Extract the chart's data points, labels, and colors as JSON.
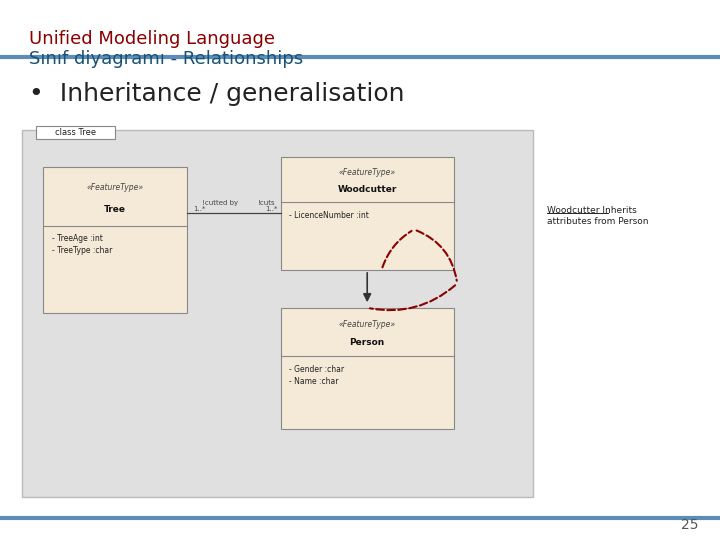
{
  "title_line1": "Unified Modeling Language",
  "title_line2": "Sınıf diyagramı - Relationships",
  "title_color": "#8B0000",
  "subtitle_color": "#1a5276",
  "bullet_text": "Inheritance / generalisation",
  "page_number": "25",
  "bg_color": "#ffffff",
  "diagram_bg": "#e0e0e0",
  "box_fill": "#f5ead8",
  "box_edge": "#888888",
  "header_line_color": "#5b8db8",
  "footer_line_color": "#5b8db8",
  "dashed_arrow_color": "#8B0000",
  "solid_line_color": "#333333",
  "annot_color": "#222222"
}
